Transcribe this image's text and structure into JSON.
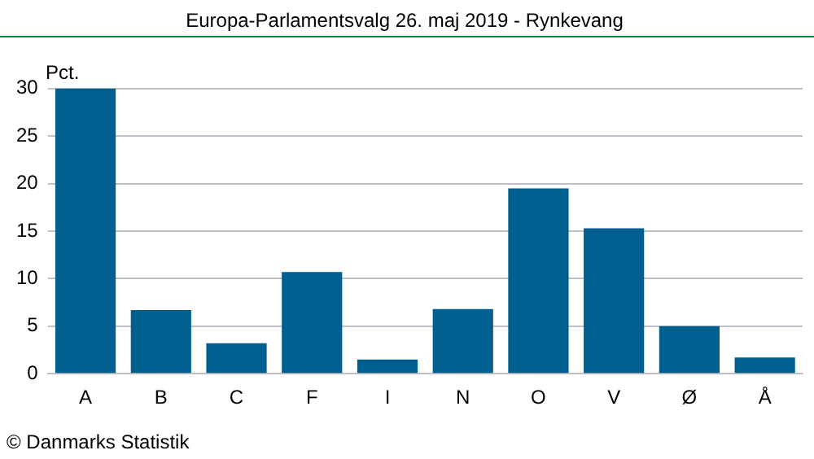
{
  "chart_data": {
    "type": "bar",
    "title": "Europa-Parlamentsvalg 26. maj 2019 - Rynkevang",
    "ylabel": "Pct.",
    "categories": [
      "A",
      "B",
      "C",
      "F",
      "I",
      "N",
      "O",
      "V",
      "Ø",
      "Å"
    ],
    "values": [
      30.0,
      6.7,
      3.2,
      10.7,
      1.5,
      6.8,
      19.5,
      15.3,
      5.0,
      1.7
    ],
    "color": "#005f8f",
    "ylim": [
      0,
      30
    ],
    "yticks": [
      0,
      5,
      10,
      15,
      20,
      25,
      30
    ],
    "grid": "y",
    "legend": false,
    "annotations": [
      "© Danmarks Statistik"
    ]
  }
}
